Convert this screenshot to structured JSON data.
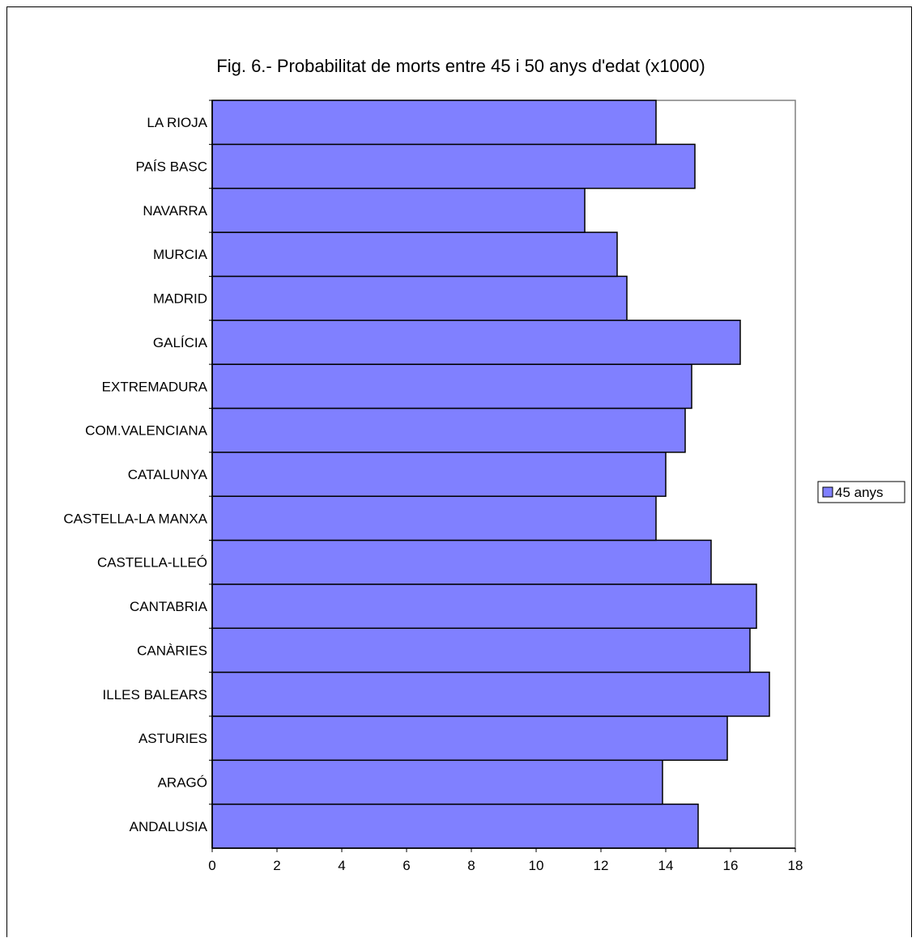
{
  "chart_data": {
    "type": "bar",
    "orientation": "horizontal",
    "title": "Fig. 6.- Probabilitat de morts entre 45 i 50 anys d'edat (x1000)",
    "xlabel": "",
    "ylabel": "",
    "categories": [
      "ANDALUSIA",
      "ARAGÓ",
      "ASTURIES",
      "ILLES BALEARS",
      "CANÀRIES",
      "CANTABRIA",
      "CASTELLA-LLEÓ",
      "CASTELLA-LA MANXA",
      "CATALUNYA",
      "COM.VALENCIANA",
      "EXTREMADURA",
      "GALÍCIA",
      "MADRID",
      "MURCIA",
      "NAVARRA",
      "PAÍS BASC",
      "LA RIOJA"
    ],
    "series": [
      {
        "name": "45 anys",
        "color": "#8080ff",
        "values": [
          15.0,
          13.9,
          15.9,
          17.2,
          16.6,
          16.8,
          15.4,
          13.7,
          14.0,
          14.6,
          14.8,
          16.3,
          12.8,
          12.5,
          11.5,
          14.9,
          13.7
        ]
      }
    ],
    "xlim": [
      0,
      18
    ],
    "xticks": [
      0,
      2,
      4,
      6,
      8,
      10,
      12,
      14,
      16,
      18
    ],
    "grid": false,
    "legend_position": "right"
  }
}
